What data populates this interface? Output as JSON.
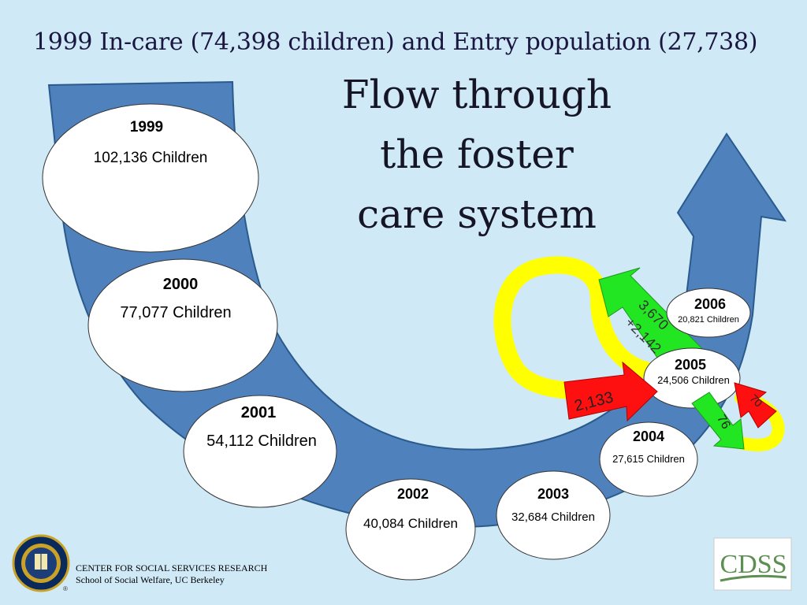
{
  "header": {
    "subtitle": "1999 In-care (74,398 children) and Entry population (27,738)",
    "title_lines": [
      "Flow through",
      "the foster",
      "care system"
    ]
  },
  "years": [
    {
      "year": "1999",
      "label": "102,136 Children"
    },
    {
      "year": "2000",
      "label": "77,077 Children"
    },
    {
      "year": "2001",
      "label": "54,112 Children"
    },
    {
      "year": "2002",
      "label": "40,084 Children"
    },
    {
      "year": "2003",
      "label": "32,684 Children"
    },
    {
      "year": "2004",
      "label": "27,615 Children"
    },
    {
      "year": "2005",
      "label": "24,506 Children"
    },
    {
      "year": "2006",
      "label": "20,821 Children"
    }
  ],
  "flows": {
    "green_large": {
      "line1": "3,670",
      "line2": "+2,142"
    },
    "red_large": "2,133",
    "green_small": "76",
    "red_small": "70"
  },
  "footer": {
    "line1": "CENTER FOR SOCIAL SERVICES RESEARCH",
    "line2": "School of Social Welfare, UC Berkeley",
    "logo_right": "CDSS"
  },
  "colors": {
    "background": "#cfe9f7",
    "band": "#4f81bd",
    "yellow": "#ffff00",
    "green": "#22e622",
    "red": "#ff1010"
  }
}
